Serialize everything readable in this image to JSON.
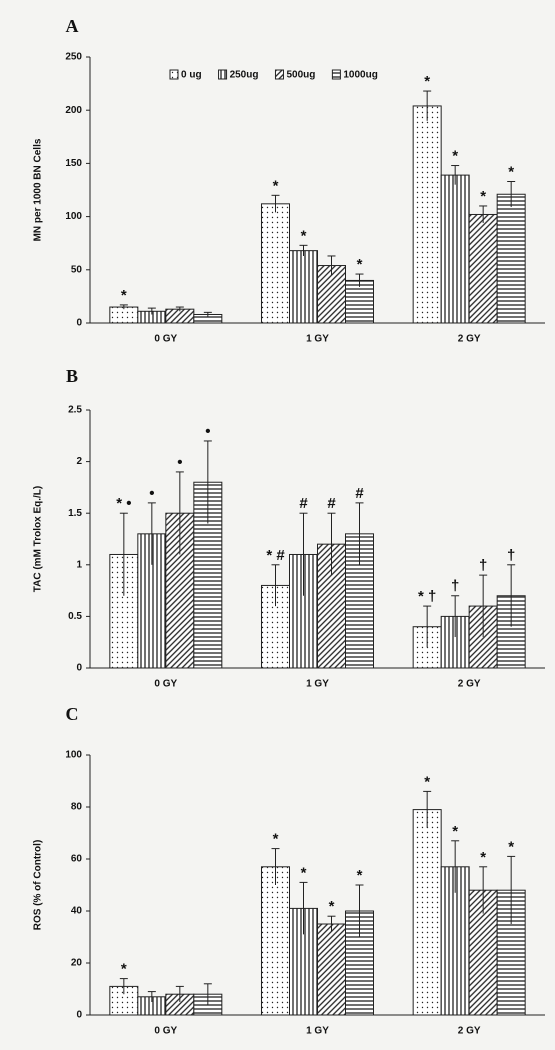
{
  "chart_data": [
    {
      "type": "bar",
      "title": "A",
      "ylabel": "MN per 1000 BN Cells",
      "categories": [
        "0 GY",
        "1 GY",
        "2 GY"
      ],
      "ylim": [
        0,
        250
      ],
      "yticks": [
        0,
        50,
        100,
        150,
        200,
        250
      ],
      "legend": "top",
      "series": [
        {
          "name": "0 ug",
          "pattern": "dots",
          "values": [
            15,
            112,
            204
          ],
          "errors": [
            2,
            8,
            14
          ],
          "markers": [
            "*",
            "*",
            "*"
          ]
        },
        {
          "name": "250ug",
          "pattern": "vertical",
          "values": [
            11,
            68,
            139
          ],
          "errors": [
            3,
            5,
            9
          ],
          "markers": [
            null,
            "*",
            "*"
          ]
        },
        {
          "name": "500ug",
          "pattern": "diagonal",
          "values": [
            13,
            54,
            102
          ],
          "errors": [
            2,
            9,
            8
          ],
          "markers": [
            null,
            null,
            "*"
          ]
        },
        {
          "name": "1000ug",
          "pattern": "horizontal",
          "values": [
            8,
            40,
            121
          ],
          "errors": [
            2,
            6,
            12
          ],
          "markers": [
            null,
            "*",
            "*"
          ]
        }
      ]
    },
    {
      "type": "bar",
      "title": "B",
      "ylabel": "TAC (mM Trolox Eq./L)",
      "categories": [
        "0 GY",
        "1 GY",
        "2 GY"
      ],
      "ylim": [
        0,
        2.5
      ],
      "yticks": [
        0,
        0.5,
        1,
        1.5,
        2,
        2.5
      ],
      "series": [
        {
          "pattern": "dots",
          "values": [
            1.1,
            0.8,
            0.4
          ],
          "errors": [
            0.4,
            0.2,
            0.2
          ],
          "markers": [
            "* •",
            "* #",
            "* †"
          ]
        },
        {
          "pattern": "vertical",
          "values": [
            1.3,
            1.1,
            0.5
          ],
          "errors": [
            0.3,
            0.4,
            0.2
          ],
          "markers": [
            "•",
            "#",
            "†"
          ]
        },
        {
          "pattern": "diagonal",
          "values": [
            1.5,
            1.2,
            0.6
          ],
          "errors": [
            0.4,
            0.3,
            0.3
          ],
          "markers": [
            "•",
            "#",
            "†"
          ]
        },
        {
          "pattern": "horizontal",
          "values": [
            1.8,
            1.3,
            0.7
          ],
          "errors": [
            0.4,
            0.3,
            0.3
          ],
          "markers": [
            "•",
            "#",
            "†"
          ]
        }
      ]
    },
    {
      "type": "bar",
      "title": "C",
      "ylabel": "ROS (% of Control)",
      "categories": [
        "0 GY",
        "1 GY",
        "2 GY"
      ],
      "ylim": [
        0,
        100
      ],
      "yticks": [
        0,
        20,
        40,
        60,
        80,
        100
      ],
      "series": [
        {
          "pattern": "dots",
          "values": [
            11,
            57,
            79
          ],
          "errors": [
            3,
            7,
            7
          ],
          "markers": [
            "*",
            "*",
            "*"
          ]
        },
        {
          "pattern": "vertical",
          "values": [
            7,
            41,
            57
          ],
          "errors": [
            2,
            10,
            10
          ],
          "markers": [
            null,
            "*",
            "*"
          ]
        },
        {
          "pattern": "diagonal",
          "values": [
            8,
            35,
            48
          ],
          "errors": [
            3,
            3,
            9
          ],
          "markers": [
            null,
            "*",
            "*"
          ]
        },
        {
          "pattern": "horizontal",
          "values": [
            8,
            40,
            48
          ],
          "errors": [
            4,
            10,
            13
          ],
          "markers": [
            null,
            "*",
            "*"
          ]
        }
      ]
    }
  ]
}
